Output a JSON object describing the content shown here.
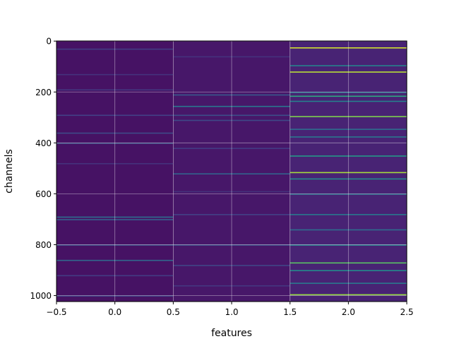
{
  "chart_data": {
    "type": "heatmap",
    "title": "",
    "xlabel": "features",
    "ylabel": "channels",
    "xlim": [
      -0.5,
      2.5
    ],
    "ylim": [
      1023.5,
      -0.5
    ],
    "x_ticks": [
      -0.5,
      0.0,
      0.5,
      1.0,
      1.5,
      2.0,
      2.5
    ],
    "x_tick_labels": [
      "−0.5",
      "0.0",
      "0.5",
      "1.0",
      "1.5",
      "2.0",
      "2.5"
    ],
    "y_ticks": [
      0,
      200,
      400,
      600,
      800,
      1000
    ],
    "y_tick_labels": [
      "0",
      "200",
      "400",
      "600",
      "800",
      "1000"
    ],
    "grid": true,
    "colormap": "viridis",
    "base_color": "#440154",
    "columns": [
      {
        "feature": 0,
        "background_intensity": 0.06,
        "highlighted_channels": [
          {
            "channel": 30,
            "intensity": 0.22
          },
          {
            "channel": 130,
            "intensity": 0.18
          },
          {
            "channel": 190,
            "intensity": 0.2
          },
          {
            "channel": 290,
            "intensity": 0.24
          },
          {
            "channel": 360,
            "intensity": 0.28
          },
          {
            "channel": 400,
            "intensity": 0.3
          },
          {
            "channel": 480,
            "intensity": 0.18
          },
          {
            "channel": 690,
            "intensity": 0.45
          },
          {
            "channel": 700,
            "intensity": 0.38
          },
          {
            "channel": 800,
            "intensity": 0.3
          },
          {
            "channel": 860,
            "intensity": 0.42
          },
          {
            "channel": 920,
            "intensity": 0.22
          },
          {
            "channel": 1000,
            "intensity": 0.25
          }
        ]
      },
      {
        "feature": 1,
        "background_intensity": 0.08,
        "highlighted_channels": [
          {
            "channel": 60,
            "intensity": 0.18
          },
          {
            "channel": 210,
            "intensity": 0.35
          },
          {
            "channel": 255,
            "intensity": 0.5
          },
          {
            "channel": 290,
            "intensity": 0.3
          },
          {
            "channel": 310,
            "intensity": 0.28
          },
          {
            "channel": 420,
            "intensity": 0.22
          },
          {
            "channel": 520,
            "intensity": 0.4
          },
          {
            "channel": 590,
            "intensity": 0.18
          },
          {
            "channel": 680,
            "intensity": 0.24
          },
          {
            "channel": 800,
            "intensity": 0.3
          },
          {
            "channel": 880,
            "intensity": 0.26
          },
          {
            "channel": 960,
            "intensity": 0.2
          }
        ]
      },
      {
        "feature": 2,
        "background_intensity": 0.12,
        "highlighted_channels": [
          {
            "channel": 25,
            "intensity": 0.95
          },
          {
            "channel": 95,
            "intensity": 0.55
          },
          {
            "channel": 120,
            "intensity": 0.92
          },
          {
            "channel": 200,
            "intensity": 0.5
          },
          {
            "channel": 215,
            "intensity": 0.7
          },
          {
            "channel": 235,
            "intensity": 0.55
          },
          {
            "channel": 295,
            "intensity": 0.85
          },
          {
            "channel": 345,
            "intensity": 0.45
          },
          {
            "channel": 375,
            "intensity": 0.5
          },
          {
            "channel": 450,
            "intensity": 0.65
          },
          {
            "channel": 515,
            "intensity": 0.9
          },
          {
            "channel": 540,
            "intensity": 0.6
          },
          {
            "channel": 600,
            "intensity": 0.45
          },
          {
            "channel": 680,
            "intensity": 0.5
          },
          {
            "channel": 740,
            "intensity": 0.45
          },
          {
            "channel": 800,
            "intensity": 0.55
          },
          {
            "channel": 870,
            "intensity": 0.8
          },
          {
            "channel": 900,
            "intensity": 0.6
          },
          {
            "channel": 950,
            "intensity": 0.5
          },
          {
            "channel": 995,
            "intensity": 0.88
          }
        ]
      }
    ]
  }
}
